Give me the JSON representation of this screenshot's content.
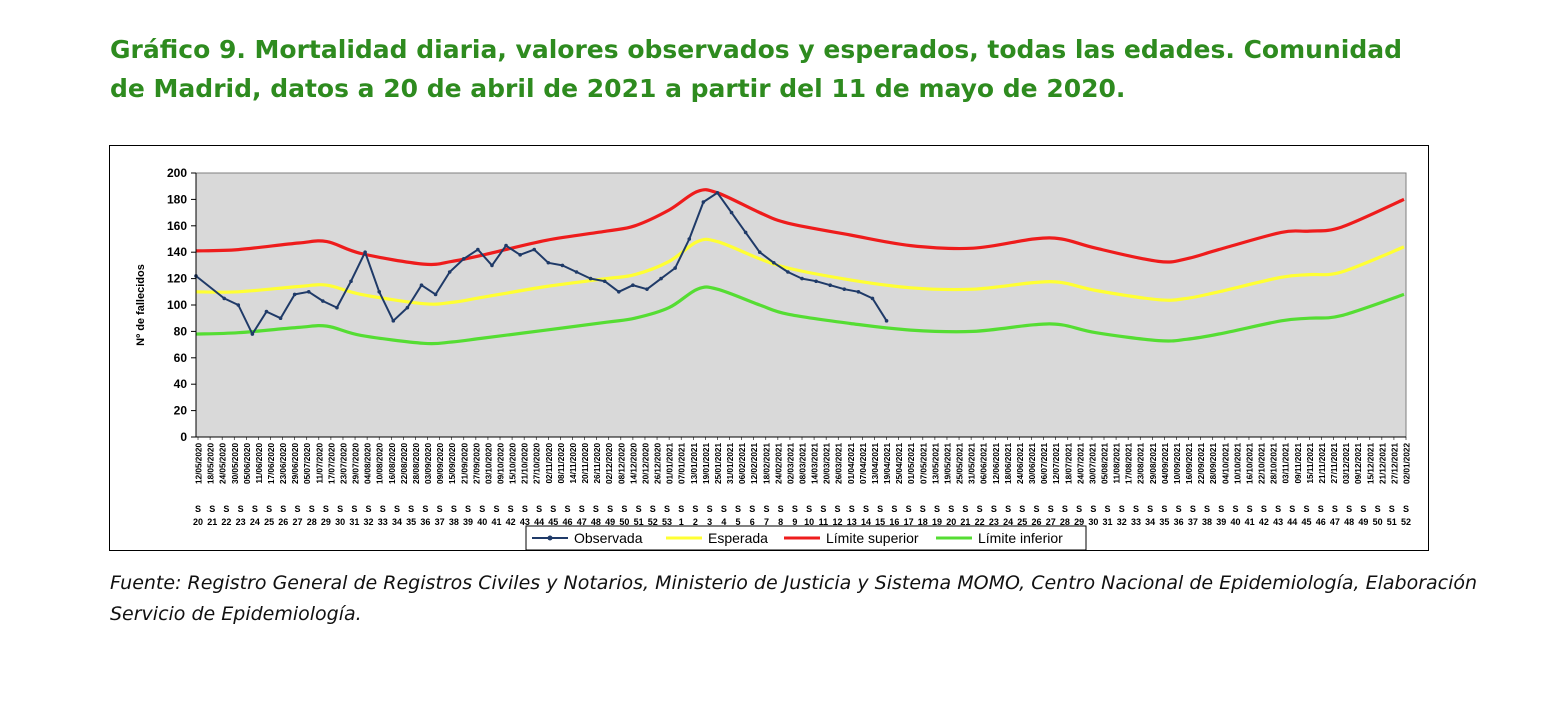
{
  "title": "Gráfico 9. Mortalidad diaria, valores observados y esperados, todas las edades. Comunidad de Madrid, datos a 20 de abril de 2021 a partir del 11 de mayo de 2020.",
  "source": "Fuente: Registro General de Registros Civiles y Notarios, Ministerio de Justicia y Sistema MOMO, Centro Nacional de Epidemiología, Elaboración Servicio de Epidemiología.",
  "chart_data": {
    "type": "line",
    "ylabel": "Nº de fallecidos",
    "ylim": [
      0,
      200
    ],
    "yticks": [
      0,
      20,
      40,
      60,
      80,
      100,
      120,
      140,
      160,
      180,
      200
    ],
    "x_start": "11/05/2020",
    "x_end": "02/01/2022",
    "date_tick_labels": [
      "12/05/2020",
      "18/05/2020",
      "24/05/2020",
      "30/05/2020",
      "05/06/2020",
      "11/06/2020",
      "17/06/2020",
      "23/06/2020",
      "29/06/2020",
      "05/07/2020",
      "11/07/2020",
      "17/07/2020",
      "23/07/2020",
      "29/07/2020",
      "04/08/2020",
      "10/08/2020",
      "16/08/2020",
      "22/08/2020",
      "28/08/2020",
      "03/09/2020",
      "09/09/2020",
      "15/09/2020",
      "21/09/2020",
      "27/09/2020",
      "03/10/2020",
      "09/10/2020",
      "15/10/2020",
      "21/10/2020",
      "27/10/2020",
      "02/11/2020",
      "08/11/2020",
      "14/11/2020",
      "20/11/2020",
      "26/11/2020",
      "02/12/2020",
      "08/12/2020",
      "14/12/2020",
      "20/12/2020",
      "26/12/2020",
      "01/01/2021",
      "07/01/2021",
      "13/01/2021",
      "19/01/2021",
      "25/01/2021",
      "31/01/2021",
      "06/02/2021",
      "12/02/2021",
      "18/02/2021",
      "24/02/2021",
      "02/03/2021",
      "08/03/2021",
      "14/03/2021",
      "20/03/2021",
      "26/03/2021",
      "01/04/2021",
      "07/04/2021",
      "13/04/2021",
      "19/04/2021",
      "25/04/2021",
      "01/05/2021",
      "07/05/2021",
      "13/05/2021",
      "19/05/2021",
      "25/05/2021",
      "31/05/2021",
      "06/06/2021",
      "12/06/2021",
      "18/06/2021",
      "24/06/2021",
      "30/06/2021",
      "06/07/2021",
      "12/07/2021",
      "18/07/2021",
      "24/07/2021",
      "30/07/2021",
      "05/08/2021",
      "11/08/2021",
      "17/08/2021",
      "23/08/2021",
      "29/08/2021",
      "04/09/2021",
      "10/09/2021",
      "16/09/2021",
      "22/09/2021",
      "28/09/2021",
      "04/10/2021",
      "10/10/2021",
      "16/10/2021",
      "22/10/2021",
      "28/10/2021",
      "03/11/2021",
      "09/11/2021",
      "15/11/2021",
      "21/11/2021",
      "27/11/2021",
      "03/12/2021",
      "09/12/2021",
      "15/12/2021",
      "21/12/2021",
      "27/12/2021",
      "02/01/2022"
    ],
    "week_labels": [
      "20",
      "21",
      "22",
      "23",
      "24",
      "25",
      "26",
      "27",
      "28",
      "29",
      "30",
      "31",
      "32",
      "33",
      "34",
      "35",
      "36",
      "37",
      "38",
      "39",
      "40",
      "41",
      "42",
      "43",
      "44",
      "45",
      "46",
      "47",
      "48",
      "49",
      "50",
      "51",
      "52",
      "53",
      "1",
      "2",
      "3",
      "4",
      "5",
      "6",
      "7",
      "8",
      "9",
      "10",
      "11",
      "12",
      "13",
      "14",
      "15",
      "16",
      "17",
      "18",
      "19",
      "20",
      "21",
      "22",
      "23",
      "24",
      "25",
      "26",
      "27",
      "28",
      "29",
      "30",
      "31",
      "32",
      "33",
      "34",
      "35",
      "36",
      "37",
      "38",
      "39",
      "40",
      "41",
      "42",
      "43",
      "44",
      "45",
      "46",
      "47",
      "48",
      "49",
      "50",
      "51",
      "52"
    ],
    "week_prefix": "S",
    "legend_position": "bottom",
    "grid": false,
    "series": [
      {
        "name": "Observada",
        "color": "#1f3a68",
        "points": [
          [
            "11/05/2020",
            122
          ],
          [
            "25/05/2020",
            105
          ],
          [
            "01/06/2020",
            100
          ],
          [
            "08/06/2020",
            78
          ],
          [
            "15/06/2020",
            95
          ],
          [
            "22/06/2020",
            90
          ],
          [
            "29/06/2020",
            108
          ],
          [
            "06/07/2020",
            110
          ],
          [
            "13/07/2020",
            103
          ],
          [
            "20/07/2020",
            98
          ],
          [
            "27/07/2020",
            118
          ],
          [
            "03/08/2020",
            140
          ],
          [
            "10/08/2020",
            110
          ],
          [
            "17/08/2020",
            88
          ],
          [
            "24/08/2020",
            98
          ],
          [
            "31/08/2020",
            115
          ],
          [
            "07/09/2020",
            108
          ],
          [
            "14/09/2020",
            125
          ],
          [
            "21/09/2020",
            135
          ],
          [
            "28/09/2020",
            142
          ],
          [
            "05/10/2020",
            130
          ],
          [
            "12/10/2020",
            145
          ],
          [
            "19/10/2020",
            138
          ],
          [
            "26/10/2020",
            142
          ],
          [
            "02/11/2020",
            132
          ],
          [
            "09/11/2020",
            130
          ],
          [
            "16/11/2020",
            125
          ],
          [
            "23/11/2020",
            120
          ],
          [
            "30/11/2020",
            118
          ],
          [
            "07/12/2020",
            110
          ],
          [
            "14/12/2020",
            115
          ],
          [
            "21/12/2020",
            112
          ],
          [
            "28/12/2020",
            120
          ],
          [
            "04/01/2021",
            128
          ],
          [
            "11/01/2021",
            150
          ],
          [
            "18/01/2021",
            178
          ],
          [
            "25/01/2021",
            185
          ],
          [
            "01/02/2021",
            170
          ],
          [
            "08/02/2021",
            155
          ],
          [
            "15/02/2021",
            140
          ],
          [
            "22/02/2021",
            132
          ],
          [
            "01/03/2021",
            125
          ],
          [
            "08/03/2021",
            120
          ],
          [
            "15/03/2021",
            118
          ],
          [
            "22/03/2021",
            115
          ],
          [
            "29/03/2021",
            112
          ],
          [
            "05/04/2021",
            110
          ],
          [
            "12/04/2021",
            105
          ],
          [
            "19/04/2021",
            88
          ]
        ]
      },
      {
        "name": "Esperada",
        "color": "#ffff33",
        "points": [
          [
            "11/05/2020",
            110
          ],
          [
            "01/06/2020",
            110
          ],
          [
            "01/07/2020",
            114
          ],
          [
            "15/07/2020",
            115
          ],
          [
            "01/08/2020",
            108
          ],
          [
            "01/09/2020",
            101
          ],
          [
            "15/09/2020",
            102
          ],
          [
            "01/10/2020",
            106
          ],
          [
            "01/11/2020",
            114
          ],
          [
            "01/12/2020",
            120
          ],
          [
            "15/12/2020",
            123
          ],
          [
            "01/01/2021",
            133
          ],
          [
            "15/01/2021",
            148
          ],
          [
            "25/01/2021",
            148
          ],
          [
            "15/02/2021",
            135
          ],
          [
            "01/03/2021",
            128
          ],
          [
            "01/04/2021",
            119
          ],
          [
            "01/05/2021",
            113
          ],
          [
            "01/06/2021",
            112
          ],
          [
            "01/07/2021",
            117
          ],
          [
            "15/07/2021",
            117
          ],
          [
            "01/08/2021",
            111
          ],
          [
            "01/09/2021",
            104
          ],
          [
            "15/09/2021",
            105
          ],
          [
            "01/10/2021",
            110
          ],
          [
            "01/11/2021",
            121
          ],
          [
            "15/11/2021",
            123
          ],
          [
            "01/12/2021",
            125
          ],
          [
            "01/01/2022",
            144
          ]
        ]
      },
      {
        "name": "Límite superior",
        "color": "#ee1c1c",
        "points": [
          [
            "11/05/2020",
            141
          ],
          [
            "01/06/2020",
            142
          ],
          [
            "01/07/2020",
            147
          ],
          [
            "15/07/2020",
            148
          ],
          [
            "01/08/2020",
            139
          ],
          [
            "01/09/2020",
            131
          ],
          [
            "15/09/2020",
            133
          ],
          [
            "01/10/2020",
            138
          ],
          [
            "01/11/2020",
            149
          ],
          [
            "01/12/2020",
            156
          ],
          [
            "15/12/2020",
            160
          ],
          [
            "01/01/2021",
            172
          ],
          [
            "15/01/2021",
            186
          ],
          [
            "25/01/2021",
            185
          ],
          [
            "15/02/2021",
            170
          ],
          [
            "01/03/2021",
            162
          ],
          [
            "01/04/2021",
            153
          ],
          [
            "01/05/2021",
            145
          ],
          [
            "01/06/2021",
            143
          ],
          [
            "01/07/2021",
            150
          ],
          [
            "15/07/2021",
            150
          ],
          [
            "01/08/2021",
            143
          ],
          [
            "01/09/2021",
            133
          ],
          [
            "15/09/2021",
            135
          ],
          [
            "01/10/2021",
            142
          ],
          [
            "01/11/2021",
            155
          ],
          [
            "15/11/2021",
            156
          ],
          [
            "01/12/2021",
            159
          ],
          [
            "01/01/2022",
            180
          ]
        ]
      },
      {
        "name": "Límite inferior",
        "color": "#55dd33",
        "points": [
          [
            "11/05/2020",
            78
          ],
          [
            "01/06/2020",
            79
          ],
          [
            "01/07/2020",
            83
          ],
          [
            "15/07/2020",
            84
          ],
          [
            "01/08/2020",
            77
          ],
          [
            "01/09/2020",
            71
          ],
          [
            "15/09/2020",
            72
          ],
          [
            "01/10/2020",
            75
          ],
          [
            "01/11/2020",
            81
          ],
          [
            "01/12/2020",
            87
          ],
          [
            "15/12/2020",
            90
          ],
          [
            "01/01/2021",
            98
          ],
          [
            "15/01/2021",
            112
          ],
          [
            "25/01/2021",
            112
          ],
          [
            "15/02/2021",
            100
          ],
          [
            "01/03/2021",
            93
          ],
          [
            "01/04/2021",
            86
          ],
          [
            "01/05/2021",
            81
          ],
          [
            "01/06/2021",
            80
          ],
          [
            "01/07/2021",
            85
          ],
          [
            "15/07/2021",
            85
          ],
          [
            "01/08/2021",
            79
          ],
          [
            "01/09/2021",
            73
          ],
          [
            "15/09/2021",
            74
          ],
          [
            "01/10/2021",
            78
          ],
          [
            "01/11/2021",
            88
          ],
          [
            "15/11/2021",
            90
          ],
          [
            "01/12/2021",
            92
          ],
          [
            "01/01/2022",
            108
          ]
        ]
      }
    ]
  }
}
